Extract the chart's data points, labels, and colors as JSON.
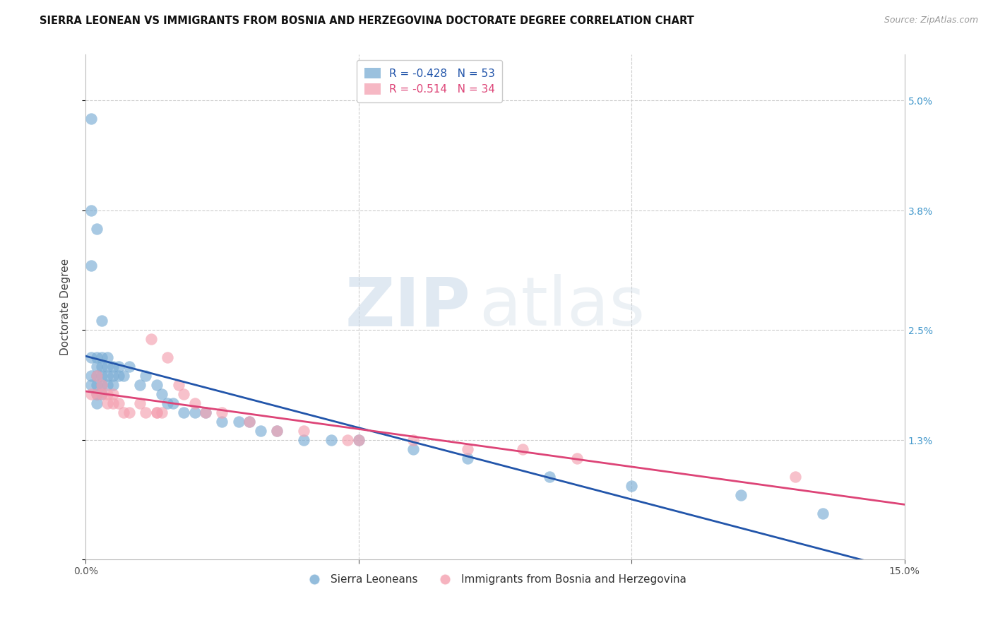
{
  "title": "SIERRA LEONEAN VS IMMIGRANTS FROM BOSNIA AND HERZEGOVINA DOCTORATE DEGREE CORRELATION CHART",
  "source": "Source: ZipAtlas.com",
  "ylabel": "Doctorate Degree",
  "xlim": [
    0.0,
    0.15
  ],
  "ylim": [
    0.0,
    0.055
  ],
  "gridline_color": "#cccccc",
  "background_color": "#ffffff",
  "blue_color": "#7aadd4",
  "pink_color": "#f4a0b0",
  "blue_line_color": "#2255aa",
  "pink_line_color": "#dd4477",
  "watermark_zip": "ZIP",
  "watermark_atlas": "atlas",
  "legend_r_blue": "R = -0.428",
  "legend_n_blue": "N = 53",
  "legend_r_pink": "R = -0.514",
  "legend_n_pink": "N = 34",
  "legend_label_blue": "Sierra Leoneans",
  "legend_label_pink": "Immigrants from Bosnia and Herzegovina",
  "blue_x": [
    0.001,
    0.001,
    0.001,
    0.001,
    0.001,
    0.001,
    0.002,
    0.002,
    0.002,
    0.002,
    0.002,
    0.002,
    0.002,
    0.003,
    0.003,
    0.003,
    0.003,
    0.003,
    0.003,
    0.004,
    0.004,
    0.004,
    0.004,
    0.005,
    0.005,
    0.005,
    0.006,
    0.006,
    0.007,
    0.008,
    0.01,
    0.011,
    0.013,
    0.014,
    0.015,
    0.016,
    0.018,
    0.02,
    0.022,
    0.025,
    0.028,
    0.03,
    0.032,
    0.035,
    0.04,
    0.045,
    0.05,
    0.06,
    0.07,
    0.085,
    0.1,
    0.12,
    0.135
  ],
  "blue_y": [
    0.048,
    0.038,
    0.032,
    0.022,
    0.02,
    0.019,
    0.036,
    0.022,
    0.021,
    0.02,
    0.019,
    0.018,
    0.017,
    0.026,
    0.022,
    0.021,
    0.02,
    0.019,
    0.018,
    0.022,
    0.021,
    0.02,
    0.019,
    0.021,
    0.02,
    0.019,
    0.021,
    0.02,
    0.02,
    0.021,
    0.019,
    0.02,
    0.019,
    0.018,
    0.017,
    0.017,
    0.016,
    0.016,
    0.016,
    0.015,
    0.015,
    0.015,
    0.014,
    0.014,
    0.013,
    0.013,
    0.013,
    0.012,
    0.011,
    0.009,
    0.008,
    0.007,
    0.005
  ],
  "pink_x": [
    0.001,
    0.002,
    0.002,
    0.003,
    0.003,
    0.004,
    0.004,
    0.005,
    0.005,
    0.006,
    0.007,
    0.008,
    0.01,
    0.011,
    0.012,
    0.013,
    0.013,
    0.014,
    0.015,
    0.017,
    0.018,
    0.02,
    0.022,
    0.025,
    0.03,
    0.035,
    0.04,
    0.048,
    0.05,
    0.06,
    0.07,
    0.08,
    0.09,
    0.13
  ],
  "pink_y": [
    0.018,
    0.02,
    0.018,
    0.019,
    0.018,
    0.018,
    0.017,
    0.018,
    0.017,
    0.017,
    0.016,
    0.016,
    0.017,
    0.016,
    0.024,
    0.016,
    0.016,
    0.016,
    0.022,
    0.019,
    0.018,
    0.017,
    0.016,
    0.016,
    0.015,
    0.014,
    0.014,
    0.013,
    0.013,
    0.013,
    0.012,
    0.012,
    0.011,
    0.009
  ]
}
